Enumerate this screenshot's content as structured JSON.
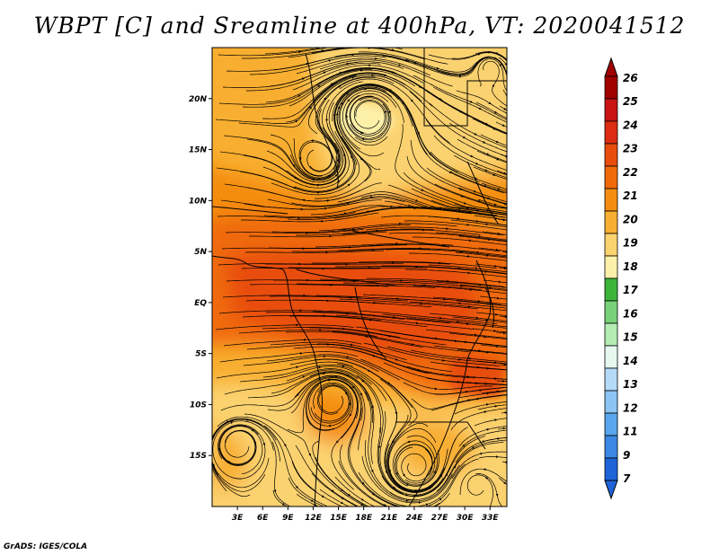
{
  "title": "WBPT [C] and Sreamline at 400hPa, VT: 2020041512",
  "credit": "GrADS: IGES/COLA",
  "map": {
    "lon_range": [
      0,
      35
    ],
    "lat_range": [
      -20,
      25
    ],
    "lon_ticks": [
      "3E",
      "6E",
      "9E",
      "12E",
      "15E",
      "18E",
      "21E",
      "24E",
      "27E",
      "30E",
      "33E"
    ],
    "lon_tick_values": [
      3,
      6,
      9,
      12,
      15,
      18,
      21,
      24,
      27,
      30,
      33
    ],
    "lat_ticks": [
      "20N",
      "15N",
      "10N",
      "5N",
      "EQ",
      "5S",
      "10S",
      "15S"
    ],
    "lat_tick_values": [
      20,
      15,
      10,
      5,
      0,
      -5,
      -10,
      -15
    ]
  },
  "colorbar": {
    "labels": [
      "26",
      "25",
      "24",
      "23",
      "22",
      "21",
      "20",
      "19",
      "18",
      "17",
      "16",
      "15",
      "14",
      "13",
      "12",
      "11",
      "9",
      "7"
    ],
    "colors": [
      "#a00000",
      "#c81414",
      "#dc2c14",
      "#e84d0c",
      "#f06a0a",
      "#f48c10",
      "#f8ae30",
      "#fbd270",
      "#fdf0a8",
      "#3cb43c",
      "#78d278",
      "#b4ecb4",
      "#e6f8f0",
      "#b4daf8",
      "#8cc4f4",
      "#5aa6ec",
      "#3c88e4",
      "#1e64d8"
    ],
    "top_color": "#a00000",
    "bottom_color": "#1e64d8"
  }
}
